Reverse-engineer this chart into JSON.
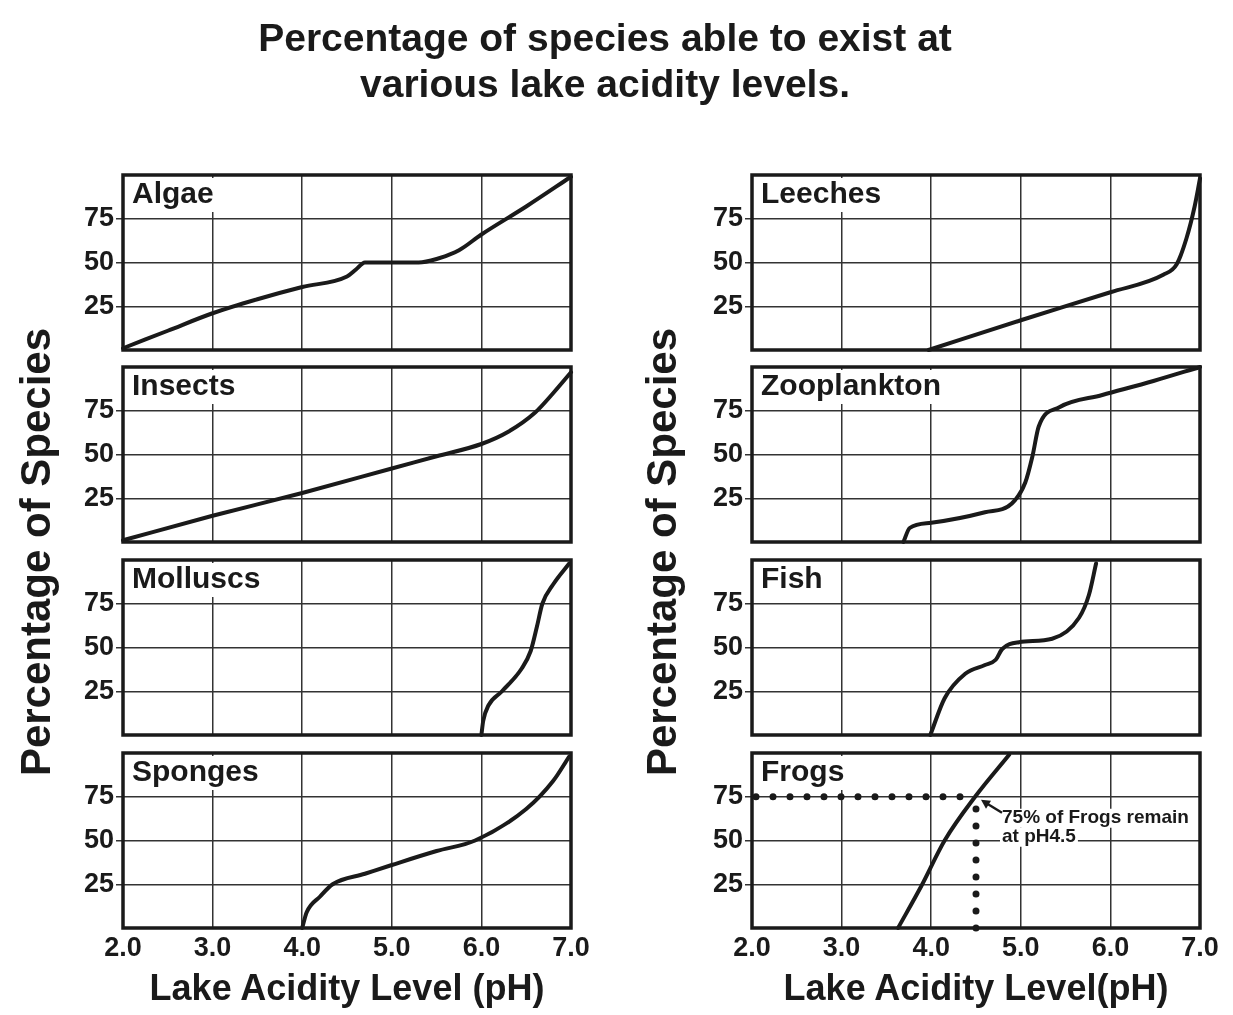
{
  "chart_data": [
    {
      "type": "line",
      "title": "Percentage of species able to exist at various lake acidity levels.",
      "ylabel": "Percentage of Species",
      "marker": "none",
      "grid": true,
      "tick_labels": "y",
      "xlim": [
        2,
        7
      ],
      "ylim": [
        0,
        100
      ],
      "xticks": [
        2,
        3,
        4,
        5,
        6,
        7
      ],
      "yticks": [
        25,
        50,
        75
      ],
      "series": [
        {
          "name": "Algae",
          "color": "#1a1a1a",
          "x": [
            2,
            2.5,
            3,
            3.5,
            4,
            4.5,
            4.6,
            4.7,
            5,
            5.3,
            5.5,
            5.75,
            6,
            6.5,
            7
          ],
          "values": [
            1,
            11,
            21,
            29,
            36,
            42,
            46,
            50,
            50,
            50,
            52,
            57,
            66,
            82,
            99
          ]
        }
      ]
    },
    {
      "type": "line",
      "marker": "none",
      "grid": true,
      "tick_labels": "y",
      "xlim": [
        2,
        7
      ],
      "ylim": [
        0,
        100
      ],
      "xticks": [
        2,
        3,
        4,
        5,
        6,
        7
      ],
      "yticks": [
        25,
        50,
        75
      ],
      "series": [
        {
          "name": "Insects",
          "color": "#1a1a1a",
          "x": [
            2,
            3,
            4,
            5,
            5.5,
            6,
            6.3,
            6.6,
            6.8,
            7
          ],
          "values": [
            1,
            15,
            28,
            42,
            49,
            56,
            63,
            74,
            85,
            97
          ]
        }
      ]
    },
    {
      "type": "line",
      "marker": "none",
      "grid": true,
      "tick_labels": "y",
      "xlim": [
        2,
        7
      ],
      "ylim": [
        0,
        100
      ],
      "xticks": [
        2,
        3,
        4,
        5,
        6,
        7
      ],
      "yticks": [
        25,
        50,
        75
      ],
      "series": [
        {
          "name": "Molluscs",
          "color": "#1a1a1a",
          "x": [
            6,
            6.02,
            6.08,
            6.23,
            6.45,
            6.55,
            6.62,
            6.68,
            6.8,
            6.98
          ],
          "values": [
            0,
            8,
            17,
            25,
            38,
            48,
            62,
            75,
            86,
            98
          ]
        }
      ]
    },
    {
      "type": "line",
      "xlabel": "Lake Acidity Level (pH)",
      "marker": "none",
      "grid": true,
      "xlim": [
        2,
        7
      ],
      "ylim": [
        0,
        100
      ],
      "xticks": [
        {
          "value": 2,
          "label": "2.0"
        },
        {
          "value": 3,
          "label": "3.0"
        },
        {
          "value": 4,
          "label": "4.0"
        },
        {
          "value": 5,
          "label": "5.0"
        },
        {
          "value": 6,
          "label": "6.0"
        },
        {
          "value": 7,
          "label": "7.0"
        }
      ],
      "yticks": [
        25,
        50,
        75
      ],
      "series": [
        {
          "name": "Sponges",
          "color": "#1a1a1a",
          "x": [
            4,
            4.05,
            4.2,
            4.34,
            4.7,
            5,
            5.5,
            5.93,
            6.5,
            6.8,
            6.98
          ],
          "values": [
            0,
            9,
            18,
            25,
            31,
            36,
            44,
            50,
            68,
            84,
            98
          ]
        }
      ]
    },
    {
      "type": "line",
      "ylabel": "Percentage of Species",
      "marker": "none",
      "grid": true,
      "tick_labels": "y",
      "xlim": [
        2,
        7
      ],
      "ylim": [
        0,
        100
      ],
      "xticks": [
        2,
        3,
        4,
        5,
        6,
        7
      ],
      "yticks": [
        25,
        50,
        75
      ],
      "series": [
        {
          "name": "Leeches",
          "color": "#1a1a1a",
          "x": [
            3.97,
            5,
            6,
            6.59,
            6.74,
            6.85,
            6.94,
            7
          ],
          "values": [
            0,
            17,
            33,
            43,
            49,
            64,
            82,
            98
          ]
        }
      ]
    },
    {
      "type": "line",
      "marker": "none",
      "grid": true,
      "tick_labels": "y",
      "xlim": [
        2,
        7
      ],
      "ylim": [
        0,
        100
      ],
      "xticks": [
        2,
        3,
        4,
        5,
        6,
        7
      ],
      "yticks": [
        25,
        50,
        75
      ],
      "series": [
        {
          "name": "Zooplankton",
          "color": "#1a1a1a",
          "x": [
            3.69,
            3.76,
            4,
            4.6,
            4.9,
            5.05,
            5.13,
            5.2,
            5.43,
            5.91,
            6.48,
            7
          ],
          "values": [
            0,
            8,
            11,
            17,
            22,
            34,
            49,
            66,
            77,
            84,
            92,
            100
          ]
        }
      ]
    },
    {
      "type": "line",
      "marker": "none",
      "grid": true,
      "tick_labels": "y",
      "xlim": [
        2,
        7
      ],
      "ylim": [
        0,
        100
      ],
      "xticks": [
        2,
        3,
        4,
        5,
        6,
        7
      ],
      "yticks": [
        25,
        50,
        75
      ],
      "series": [
        {
          "name": "Fish",
          "color": "#1a1a1a",
          "x": [
            3.99,
            4.15,
            4.38,
            4.6,
            4.72,
            4.79,
            4.98,
            5.35,
            5.65,
            5.76,
            5.84
          ],
          "values": [
            0,
            21,
            35,
            40,
            43,
            49,
            53,
            55,
            67,
            80,
            98
          ]
        }
      ]
    },
    {
      "type": "line",
      "xlabel": "Lake Acidity Level(pH)",
      "marker": "none",
      "grid": true,
      "xlim": [
        2,
        7
      ],
      "ylim": [
        0,
        100
      ],
      "xticks": [
        {
          "value": 2,
          "label": "2.0"
        },
        {
          "value": 3,
          "label": "3.0"
        },
        {
          "value": 4,
          "label": "4.0"
        },
        {
          "value": 5,
          "label": "5.0"
        },
        {
          "value": 6,
          "label": "6.0"
        },
        {
          "value": 7,
          "label": "7.0"
        }
      ],
      "yticks": [
        25,
        50,
        75
      ],
      "ref_lines": [
        {
          "axis": "y",
          "value": 75,
          "color": "#1a1a1a",
          "line_style": "dotted"
        },
        {
          "axis": "x",
          "value": 4.5,
          "color": "#1a1a1a",
          "line_style": "dotted"
        }
      ],
      "annotations": [
        {
          "text": "75% of Frogs remain at pH4.5",
          "x": 4.5,
          "y": 75
        }
      ],
      "series": [
        {
          "name": "Frogs",
          "color": "#1a1a1a",
          "x": [
            3.63,
            3.89,
            4.15,
            4.49,
            4.87
          ],
          "values": [
            0,
            24,
            50,
            75,
            99
          ]
        }
      ]
    }
  ]
}
